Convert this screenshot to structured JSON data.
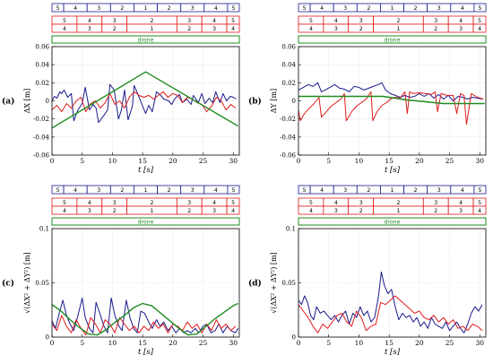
{
  "colors": {
    "blue": "#1a1a8c",
    "red": "#e01b1b",
    "green": "#1e8c1e",
    "axis": "#000000",
    "grid": "#d9d9d9"
  },
  "row_blue": [
    "5",
    "4",
    "3",
    "2",
    "1",
    "2",
    "3",
    "4",
    "5"
  ],
  "row_red_top": [
    "5",
    "4",
    "3",
    "2",
    "3",
    "4",
    "5"
  ],
  "row_red_bottom": [
    "4",
    "3",
    "2",
    "1",
    "2",
    "3",
    "4"
  ],
  "green_bar_label": "drone",
  "chart_data": [
    {
      "type": "line",
      "panel_label": "(a)",
      "xlabel": "t [s]",
      "ylabel": "ΔX [m]",
      "xlim": [
        0,
        31
      ],
      "ylim": [
        -0.06,
        0.06
      ],
      "xticks": [
        0,
        5,
        10,
        15,
        20,
        25,
        30
      ],
      "yticks": [
        -0.06,
        -0.04,
        -0.02,
        0,
        0.02,
        0.04,
        0.06
      ],
      "ytick_labels": [
        "-0.06",
        "-0.04",
        "-0.02",
        "0",
        "0.02",
        "0.04",
        "0.06"
      ],
      "grid": true,
      "series": [
        {
          "color": "blue",
          "x": [
            0,
            0.4,
            0.8,
            1.3,
            1.6,
            2.0,
            2.6,
            3.2,
            3.6,
            4.3,
            5.0,
            5.5,
            6.2,
            6.8,
            7.3,
            7.7,
            8.6,
            9.2,
            9.6,
            10.3,
            11.0,
            11.5,
            12.0,
            12.6,
            13.3,
            13.6,
            14.3,
            15.0,
            15.5,
            16.0,
            16.6,
            17.3,
            18.0,
            18.5,
            19.3,
            19.8,
            20.4,
            21.1,
            21.6,
            22.3,
            23.0,
            23.4,
            24.2,
            24.8,
            25.3,
            26.0,
            26.6,
            27.1,
            27.8,
            28.3,
            28.9,
            29.5,
            30.0,
            30.5
          ],
          "y": [
            0.0,
            0.005,
            0.003,
            0.01,
            0.008,
            0.012,
            0.004,
            0.008,
            -0.022,
            -0.01,
            -0.003,
            0.015,
            -0.01,
            -0.004,
            -0.008,
            -0.024,
            -0.016,
            -0.01,
            0.018,
            0.012,
            -0.02,
            -0.01,
            0.012,
            -0.021,
            -0.006,
            0.017,
            0.006,
            -0.006,
            -0.014,
            -0.005,
            -0.012,
            0.01,
            0.006,
            0.002,
            0.0,
            -0.004,
            0.003,
            0.007,
            -0.002,
            0.002,
            -0.004,
            0.006,
            -0.002,
            0.008,
            -0.003,
            0.003,
            -0.002,
            0.01,
            -0.002,
            0.008,
            0.0,
            0.005,
            0.004,
            0.002
          ]
        },
        {
          "color": "red",
          "x": [
            0,
            0.8,
            1.6,
            2.4,
            3.2,
            4.0,
            4.8,
            5.6,
            6.4,
            7.2,
            8.0,
            8.8,
            9.6,
            10.4,
            11.2,
            12.0,
            12.8,
            13.6,
            14.4,
            15.2,
            16.0,
            16.8,
            17.6,
            18.4,
            19.2,
            20.0,
            20.8,
            21.6,
            22.4,
            23.2,
            24.0,
            24.8,
            25.6,
            26.4,
            27.2,
            28.0,
            28.8,
            29.6,
            30.4
          ],
          "y": [
            -0.01,
            -0.005,
            -0.012,
            -0.003,
            -0.008,
            0.0,
            0.004,
            -0.012,
            -0.003,
            0.0,
            -0.008,
            -0.002,
            0.008,
            -0.004,
            0.0,
            -0.008,
            0.004,
            0.01,
            0.006,
            0.004,
            0.006,
            0.002,
            0.006,
            0.01,
            0.004,
            0.008,
            0.006,
            -0.002,
            0.004,
            0.002,
            -0.002,
            -0.004,
            -0.012,
            -0.006,
            0.004,
            0.0,
            -0.01,
            -0.004,
            -0.008
          ]
        },
        {
          "color": "green",
          "x": [
            0,
            15.5,
            30.8
          ],
          "y": [
            -0.03,
            0.032,
            -0.028
          ]
        }
      ]
    },
    {
      "type": "line",
      "panel_label": "(b)",
      "xlabel": "t [s]",
      "ylabel": "ΔY [m]",
      "xlim": [
        0,
        31
      ],
      "ylim": [
        -0.06,
        0.06
      ],
      "xticks": [
        0,
        5,
        10,
        15,
        20,
        25,
        30
      ],
      "yticks": [
        -0.06,
        -0.04,
        -0.02,
        0,
        0.02,
        0.04,
        0.06
      ],
      "ytick_labels": [
        "-0.06",
        "-0.04",
        "-0.02",
        "0",
        "0.02",
        "0.04",
        "0.06"
      ],
      "grid": true,
      "series": [
        {
          "color": "blue",
          "x": [
            0,
            0.8,
            1.6,
            2.4,
            3.2,
            3.8,
            4.4,
            5.2,
            6.0,
            6.8,
            7.6,
            8.4,
            9.2,
            10.0,
            10.8,
            11.6,
            12.4,
            13.2,
            13.8,
            14.4,
            15.2,
            16.0,
            16.8,
            17.6,
            18.4,
            19.2,
            20.0,
            20.8,
            21.6,
            22.4,
            23.2,
            24.0,
            24.8,
            25.6,
            26.4,
            27.2,
            28.0,
            28.8,
            29.6,
            30.4
          ],
          "y": [
            0.012,
            0.015,
            0.018,
            0.016,
            0.02,
            0.01,
            0.012,
            0.015,
            0.018,
            0.014,
            0.013,
            0.01,
            0.016,
            0.015,
            0.012,
            0.014,
            0.016,
            0.018,
            0.02,
            0.012,
            0.008,
            0.006,
            0.004,
            0.006,
            0.004,
            0.005,
            0.008,
            0.005,
            0.008,
            0.003,
            0.007,
            0.002,
            0.006,
            0.0,
            0.005,
            0.004,
            0.002,
            0.004,
            0.003,
            0.002
          ]
        },
        {
          "color": "red",
          "x": [
            0,
            0.3,
            1.0,
            1.8,
            2.6,
            3.4,
            3.8,
            4.6,
            5.4,
            6.2,
            7.0,
            7.6,
            7.9,
            8.8,
            9.6,
            10.4,
            11.2,
            12.0,
            12.3,
            13.0,
            13.8,
            14.6,
            15.2,
            16.0,
            16.8,
            17.6,
            18.0,
            18.4,
            19.0,
            20.0,
            21.0,
            22.0,
            22.6,
            23.0,
            23.6,
            24.6,
            25.6,
            26.2,
            26.8,
            27.4,
            27.8,
            28.6,
            29.6,
            30.6
          ],
          "y": [
            -0.01,
            -0.022,
            -0.014,
            -0.008,
            -0.003,
            0.004,
            -0.018,
            -0.012,
            -0.006,
            -0.002,
            0.002,
            0.008,
            -0.022,
            -0.012,
            -0.006,
            -0.002,
            0.002,
            0.01,
            -0.022,
            -0.012,
            -0.005,
            -0.002,
            0.002,
            0.004,
            0.003,
            0.01,
            -0.014,
            0.01,
            0.008,
            0.009,
            0.008,
            0.007,
            0.01,
            -0.012,
            0.008,
            0.006,
            0.006,
            -0.014,
            0.008,
            0.006,
            -0.026,
            0.008,
            0.004,
            0.002
          ]
        },
        {
          "color": "green",
          "x": [
            0,
            7,
            14,
            18,
            24,
            30.8
          ],
          "y": [
            0.005,
            0.005,
            0.005,
            0.001,
            -0.003,
            -0.003
          ]
        }
      ]
    },
    {
      "type": "line",
      "panel_label": "(c)",
      "xlabel": "t [s]",
      "ylabel": "√(ΔX² + ΔY²) [m]",
      "xlim": [
        0,
        31
      ],
      "ylim": [
        0,
        0.1
      ],
      "xticks": [
        0,
        5,
        10,
        15,
        20,
        25,
        30
      ],
      "yticks": [
        0,
        0.05,
        0.1
      ],
      "ytick_labels": [
        "0",
        "0.05",
        "0.1"
      ],
      "grid": true,
      "series": [
        {
          "color": "blue",
          "x": [
            0,
            0.6,
            1.2,
            1.8,
            2.4,
            3.0,
            3.6,
            4.3,
            5.0,
            5.5,
            6.2,
            6.8,
            7.3,
            7.9,
            8.6,
            9.2,
            9.8,
            10.4,
            11.1,
            11.6,
            12.3,
            12.9,
            13.5,
            14.1,
            14.7,
            15.3,
            16.0,
            16.6,
            17.3,
            17.9,
            18.5,
            19.2,
            19.8,
            20.5,
            21.1,
            21.8,
            22.4,
            23.0,
            23.7,
            24.3,
            25.0,
            25.6,
            26.3,
            27.0,
            27.6,
            28.3,
            29.0,
            29.6,
            30.3,
            30.8
          ],
          "y": [
            0.015,
            0.008,
            0.022,
            0.034,
            0.02,
            0.012,
            0.006,
            0.02,
            0.036,
            0.018,
            0.008,
            0.004,
            0.032,
            0.022,
            0.01,
            0.004,
            0.036,
            0.02,
            0.01,
            0.006,
            0.034,
            0.018,
            0.008,
            0.004,
            0.024,
            0.022,
            0.014,
            0.008,
            0.016,
            0.01,
            0.014,
            0.006,
            0.01,
            0.004,
            0.008,
            0.004,
            0.006,
            0.004,
            0.008,
            0.004,
            0.01,
            0.012,
            0.004,
            0.006,
            0.012,
            0.004,
            0.01,
            0.006,
            0.004,
            0.008
          ]
        },
        {
          "color": "red",
          "x": [
            0,
            0.8,
            1.6,
            2.4,
            3.2,
            4.0,
            4.8,
            5.6,
            6.4,
            7.2,
            8.0,
            8.8,
            9.6,
            10.4,
            11.2,
            12.0,
            12.8,
            13.6,
            14.4,
            15.2,
            16.0,
            16.8,
            17.6,
            18.4,
            19.2,
            20.0,
            20.8,
            21.6,
            22.4,
            23.2,
            24.0,
            24.8,
            25.6,
            26.4,
            27.2,
            28.0,
            28.8,
            29.6,
            30.4
          ],
          "y": [
            0.012,
            0.006,
            0.02,
            0.01,
            0.004,
            0.016,
            0.008,
            0.002,
            0.018,
            0.012,
            0.004,
            0.016,
            0.012,
            0.004,
            0.018,
            0.012,
            0.006,
            0.01,
            0.004,
            0.01,
            0.006,
            0.014,
            0.008,
            0.012,
            0.004,
            0.012,
            0.01,
            0.006,
            0.014,
            0.008,
            0.012,
            0.004,
            0.012,
            0.006,
            0.016,
            0.008,
            0.012,
            0.006,
            0.01
          ]
        },
        {
          "color": "green",
          "x": [
            0,
            1.5,
            3,
            4.5,
            6,
            7.5,
            9,
            10.5,
            12,
            13.5,
            15,
            16.5,
            18,
            19.5,
            21,
            22.5,
            24,
            25.5,
            27,
            28.5,
            30,
            30.8
          ],
          "y": [
            0.03,
            0.024,
            0.016,
            0.009,
            0.003,
            0.002,
            0.007,
            0.014,
            0.02,
            0.027,
            0.031,
            0.029,
            0.022,
            0.015,
            0.008,
            0.002,
            0.003,
            0.01,
            0.017,
            0.023,
            0.029,
            0.031
          ]
        }
      ]
    },
    {
      "type": "line",
      "panel_label": "(d)",
      "xlabel": "t [s]",
      "ylabel": "√(ΔX² + ΔY²) [m]",
      "xlim": [
        0,
        31
      ],
      "ylim": [
        0,
        0.1
      ],
      "xticks": [
        0,
        5,
        10,
        15,
        20,
        25,
        30
      ],
      "yticks": [
        0,
        0.05,
        0.1
      ],
      "ytick_labels": [
        "0",
        "0.05",
        "0.1"
      ],
      "grid": true,
      "series": [
        {
          "color": "blue",
          "x": [
            0,
            0.5,
            1.0,
            1.5,
            2.0,
            2.5,
            3.0,
            3.6,
            4.2,
            4.8,
            5.4,
            6.0,
            6.6,
            7.2,
            7.8,
            8.4,
            9.0,
            9.6,
            10.2,
            10.8,
            11.4,
            12.0,
            12.6,
            13.2,
            13.7,
            14.2,
            14.8,
            15.4,
            16.0,
            16.6,
            17.2,
            17.8,
            18.4,
            19.0,
            19.6,
            20.2,
            20.8,
            21.4,
            22.0,
            22.6,
            23.2,
            23.8,
            24.4,
            25.0,
            25.6,
            26.2,
            26.8,
            27.4,
            28.0,
            28.6,
            29.2,
            29.8,
            30.4
          ],
          "y": [
            0.034,
            0.03,
            0.038,
            0.032,
            0.02,
            0.016,
            0.028,
            0.022,
            0.024,
            0.02,
            0.016,
            0.02,
            0.014,
            0.02,
            0.024,
            0.012,
            0.022,
            0.018,
            0.028,
            0.02,
            0.024,
            0.014,
            0.018,
            0.036,
            0.06,
            0.048,
            0.04,
            0.044,
            0.028,
            0.016,
            0.022,
            0.018,
            0.02,
            0.014,
            0.018,
            0.01,
            0.014,
            0.008,
            0.018,
            0.012,
            0.01,
            0.008,
            0.014,
            0.006,
            0.01,
            0.014,
            0.008,
            0.004,
            0.012,
            0.022,
            0.028,
            0.024,
            0.03
          ]
        },
        {
          "color": "red",
          "x": [
            0,
            0.8,
            1.6,
            2.4,
            3.2,
            4.0,
            4.8,
            5.6,
            6.4,
            7.2,
            8.0,
            8.8,
            9.6,
            10.4,
            11.2,
            12.0,
            12.8,
            13.6,
            14.4,
            15.2,
            16.0,
            16.8,
            17.6,
            18.4,
            19.2,
            20.0,
            20.8,
            21.6,
            22.4,
            23.2,
            24.0,
            24.8,
            25.6,
            26.4,
            27.2,
            28.0,
            28.8,
            29.6,
            30.4
          ],
          "y": [
            0.03,
            0.024,
            0.018,
            0.01,
            0.004,
            0.012,
            0.008,
            0.014,
            0.02,
            0.022,
            0.014,
            0.01,
            0.024,
            0.018,
            0.006,
            0.01,
            0.012,
            0.032,
            0.03,
            0.034,
            0.038,
            0.034,
            0.03,
            0.026,
            0.022,
            0.024,
            0.018,
            0.016,
            0.02,
            0.014,
            0.018,
            0.012,
            0.016,
            0.008,
            0.01,
            0.006,
            0.012,
            0.01,
            0.006
          ]
        }
      ]
    }
  ]
}
